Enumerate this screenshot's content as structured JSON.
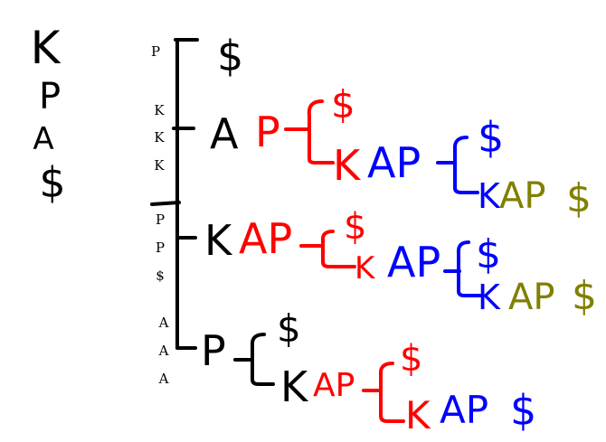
{
  "colors": {
    "black": "#000000",
    "red": "#ff0000",
    "blue": "#0000ff",
    "olive": "#808000"
  },
  "word": [
    "K",
    "P",
    "A",
    "$"
  ],
  "column_letters": [
    "P",
    "K",
    "K",
    "K",
    "P",
    "P",
    "$",
    "A",
    "A",
    "A"
  ],
  "tree": {
    "b1_end": "$",
    "b2_root": "A",
    "b2_p": "P",
    "b2_r1_end": "$",
    "b2_r2_k": "K",
    "b2_r2_ap": "AP",
    "b2_r2_end": "$",
    "b2_r3_k": "K",
    "b2_r3_ap": "AP",
    "b2_r3_dollar": "$",
    "b3_k": "K",
    "b3_ap": "AP",
    "b3_r1_end": "$",
    "b3_r2_k": "K",
    "b3_r2_ap": "AP",
    "b3_r2_end": "$",
    "b3_r3_k": "K",
    "b3_r3_ap": "AP",
    "b3_r3_dollar": "$",
    "b4_p": "P",
    "b4_r1_end": "$",
    "b4_r2_k": "K",
    "b4_r2_ap": "AP",
    "b4_r2_end": "$",
    "b4_r3_k": "K",
    "b4_r3_ap": "AP",
    "b4_r3_dollar": "$"
  }
}
